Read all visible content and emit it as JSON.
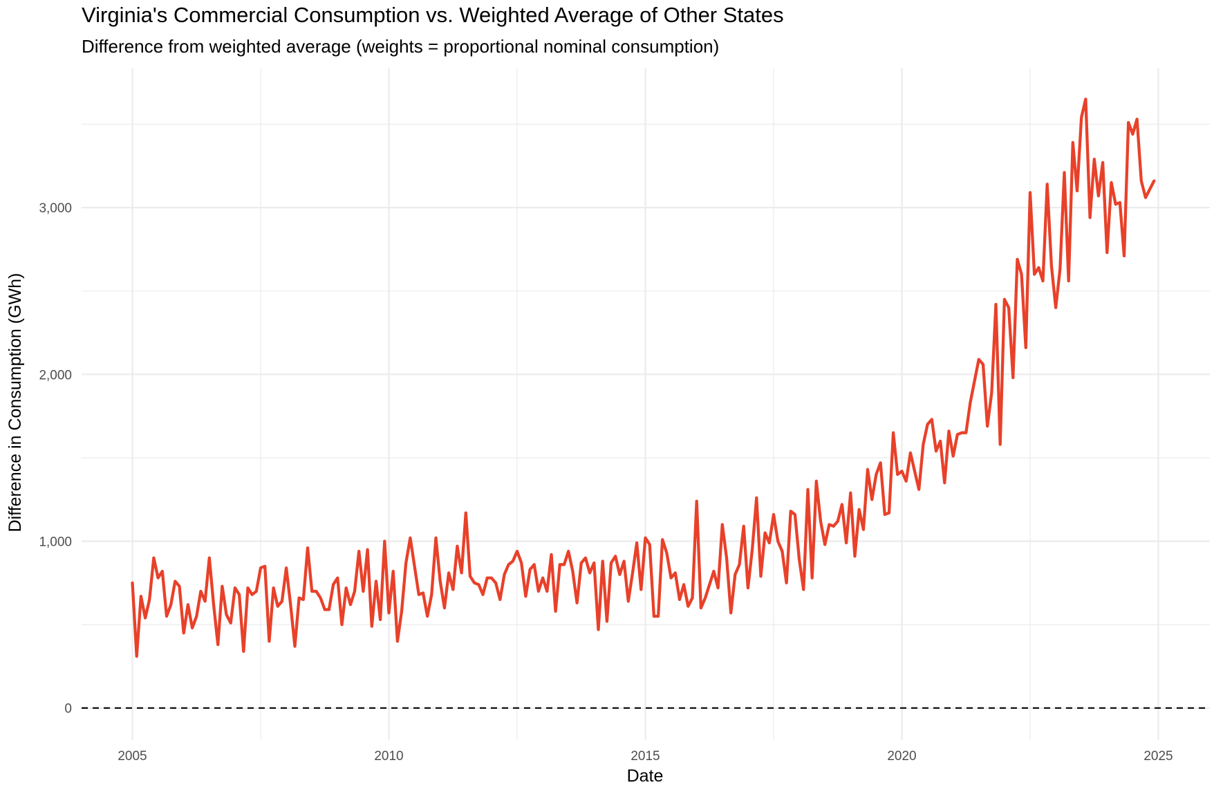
{
  "chart_data": {
    "type": "line",
    "title": "Virginia's Commercial Consumption vs. Weighted Average of Other States",
    "subtitle": "Difference from weighted average (weights = proportional nominal consumption)",
    "xlabel": "Date",
    "ylabel": "Difference in Consumption (GWh)",
    "xlim": [
      "2004-09",
      "2025-09"
    ],
    "ylim": [
      -180,
      3780
    ],
    "x_ticks": [
      "2005",
      "2010",
      "2015",
      "2020",
      "2025"
    ],
    "y_ticks": [
      "0",
      "1,000",
      "2,000",
      "3,000"
    ],
    "y_tick_values": [
      0,
      1000,
      2000,
      3000
    ],
    "grid": true,
    "reference_line": {
      "y": 0,
      "style": "dashed",
      "color": "#000000"
    },
    "line_color": "#E8412A",
    "x_start": "2005-01",
    "x_frequency": "monthly",
    "series": [
      {
        "values": [
          750,
          310,
          670,
          540,
          650,
          900,
          780,
          820,
          550,
          620,
          760,
          730,
          450,
          620,
          480,
          550,
          700,
          640,
          900,
          620,
          380,
          730,
          560,
          510,
          720,
          680,
          340,
          720,
          680,
          700,
          840,
          850,
          400,
          720,
          610,
          640,
          840,
          620,
          370,
          660,
          650,
          960,
          700,
          700,
          660,
          590,
          590,
          740,
          780,
          500,
          720,
          620,
          700,
          940,
          700,
          950,
          490,
          760,
          530,
          1000,
          570,
          820,
          400,
          580,
          870,
          1020,
          850,
          680,
          690,
          550,
          680,
          1020,
          760,
          600,
          810,
          710,
          970,
          810,
          1170,
          790,
          750,
          740,
          680,
          780,
          780,
          750,
          650,
          800,
          860,
          880,
          940,
          870,
          670,
          830,
          860,
          700,
          780,
          700,
          920,
          580,
          860,
          860,
          940,
          820,
          630,
          870,
          900,
          810,
          870,
          470,
          880,
          520,
          870,
          910,
          800,
          880,
          640,
          810,
          990,
          710,
          1020,
          980,
          550,
          550,
          1010,
          930,
          780,
          810,
          650,
          740,
          610,
          660,
          1240,
          600,
          660,
          740,
          820,
          720,
          1100,
          900,
          570,
          800,
          860,
          1090,
          720,
          950,
          1260,
          790,
          1050,
          990,
          1160,
          1000,
          940,
          750,
          1180,
          1160,
          890,
          710,
          1310,
          780,
          1360,
          1120,
          980,
          1100,
          1090,
          1120,
          1220,
          990,
          1290,
          910,
          1190,
          1070,
          1430,
          1250,
          1400,
          1470,
          1160,
          1170,
          1650,
          1400,
          1420,
          1360,
          1530,
          1420,
          1310,
          1580,
          1700,
          1730,
          1540,
          1600,
          1350,
          1660,
          1510,
          1640,
          1650,
          1650,
          1830,
          1960,
          2090,
          2060,
          1690,
          1890,
          2420,
          1580,
          2450,
          2400,
          1980,
          2690,
          2600,
          2160,
          3090,
          2600,
          2640,
          2560,
          3140,
          2650,
          2400,
          2630,
          3210,
          2560,
          3390,
          3100,
          3540,
          3650,
          2940,
          3290,
          3070,
          3270,
          2730,
          3150,
          3020,
          3030,
          2710,
          3510,
          3440,
          3530,
          3160,
          3060,
          3110,
          3160
        ]
      }
    ]
  }
}
